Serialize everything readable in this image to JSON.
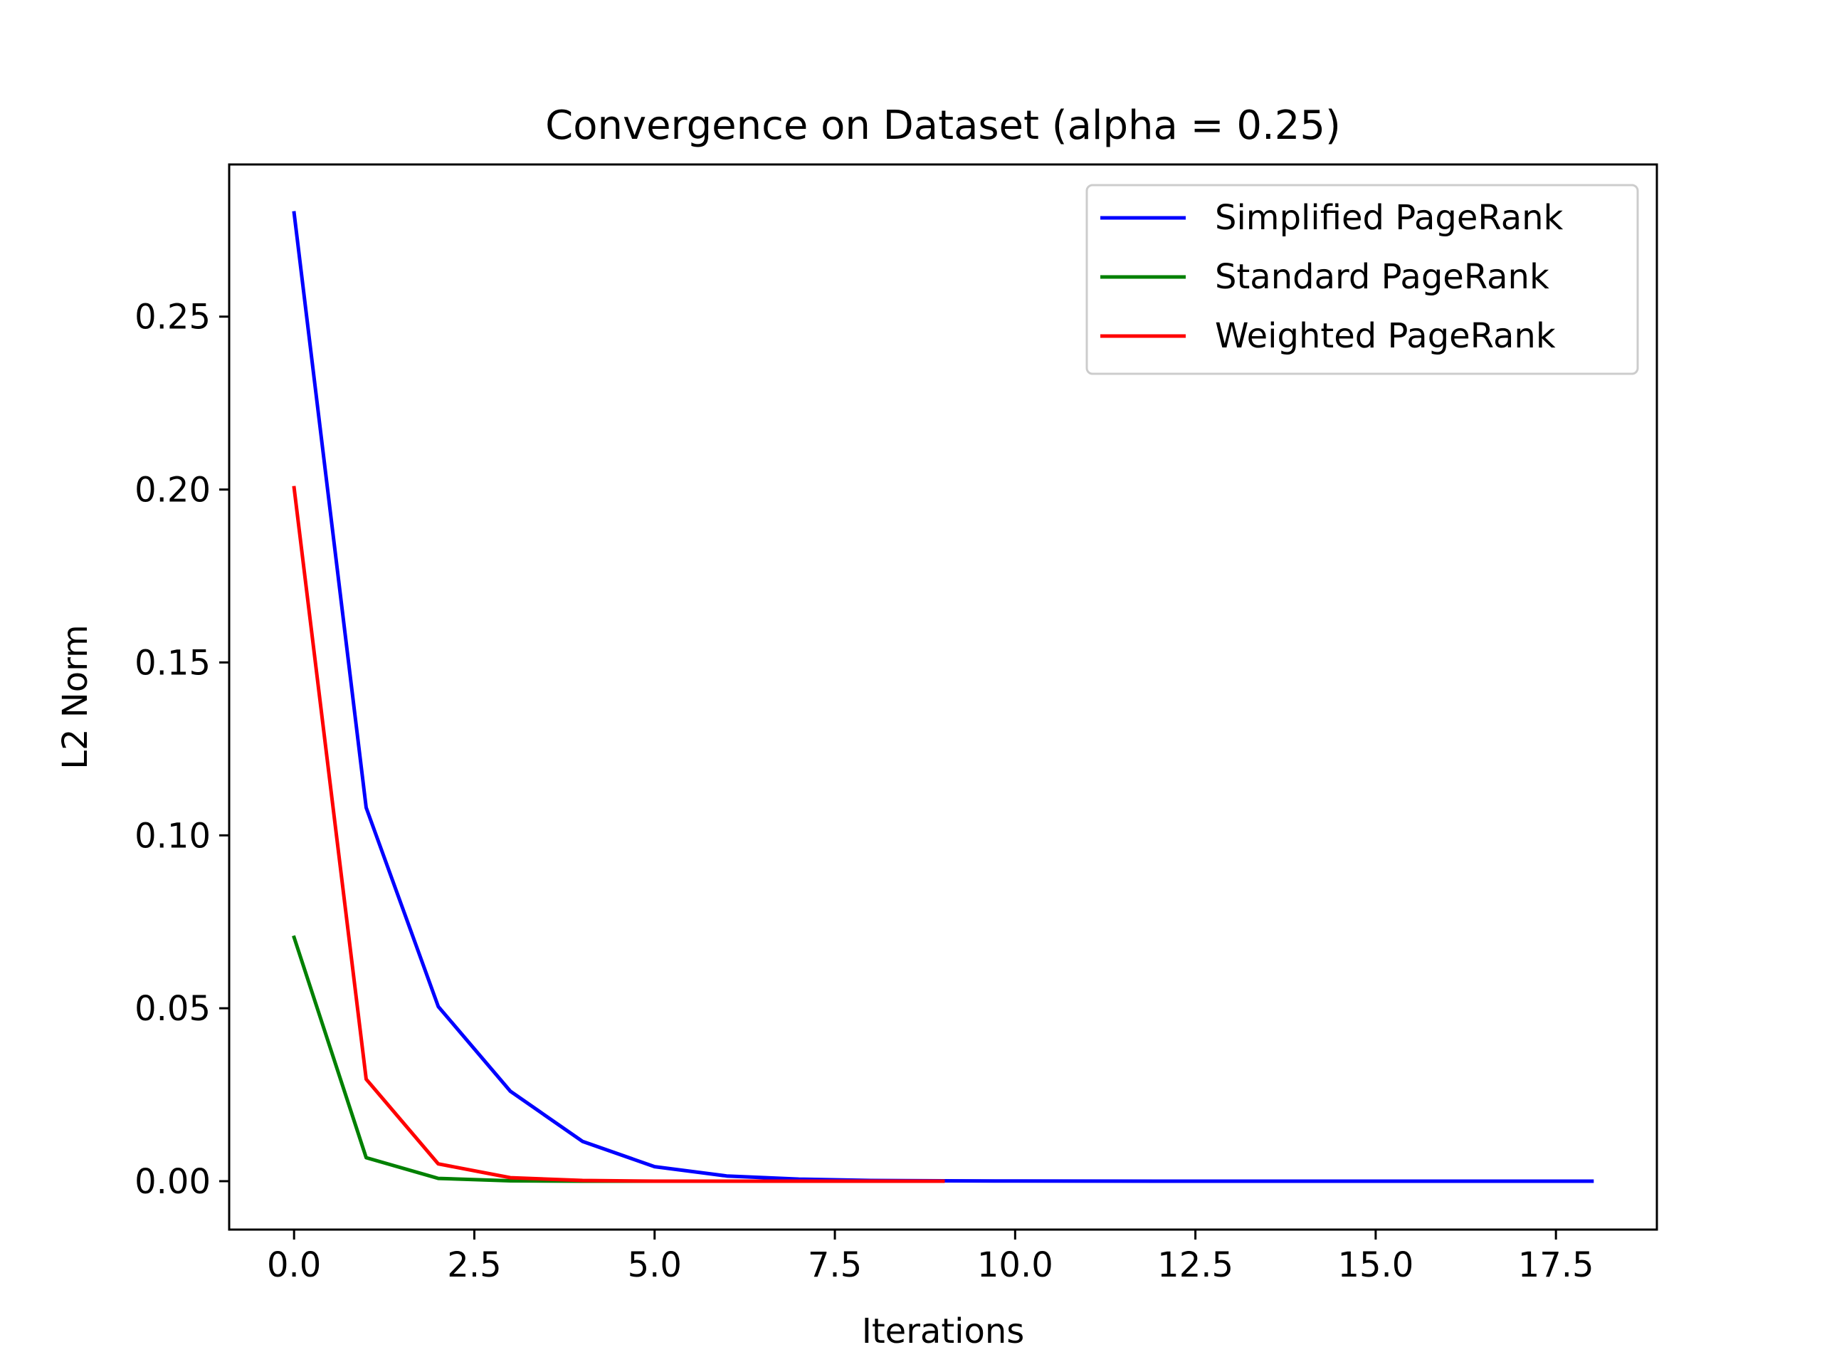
{
  "chart_data": {
    "type": "line",
    "title": "Convergence on Dataset (alpha = 0.25)",
    "xlabel": "Iterations",
    "ylabel": "L2 Norm",
    "xlim": [
      -0.9,
      18.9
    ],
    "ylim": [
      -0.014,
      0.294
    ],
    "xticks": [
      0.0,
      2.5,
      5.0,
      7.5,
      10.0,
      12.5,
      15.0,
      17.5
    ],
    "xtick_labels": [
      "0.0",
      "2.5",
      "5.0",
      "7.5",
      "10.0",
      "12.5",
      "15.0",
      "17.5"
    ],
    "yticks": [
      0.0,
      0.05,
      0.1,
      0.15,
      0.2,
      0.25
    ],
    "ytick_labels": [
      "0.00",
      "0.05",
      "0.10",
      "0.15",
      "0.20",
      "0.25"
    ],
    "grid": false,
    "legend_position": "upper right",
    "series": [
      {
        "name": "Simplified PageRank",
        "color": "#0000ff",
        "x": [
          0,
          1,
          2,
          3,
          4,
          5,
          6,
          7,
          8,
          9,
          10,
          11,
          12,
          13,
          14,
          15,
          16,
          17,
          18
        ],
        "y": [
          0.28,
          0.108,
          0.0505,
          0.026,
          0.0115,
          0.0042,
          0.0015,
          0.0006,
          0.0002,
          0.0001,
          5e-05,
          2e-05,
          1e-05,
          0.0,
          0.0,
          0.0,
          0.0,
          0.0,
          0.0
        ]
      },
      {
        "name": "Standard PageRank",
        "color": "#008000",
        "x": [
          0,
          1,
          2,
          3,
          4,
          5
        ],
        "y": [
          0.0705,
          0.0068,
          0.0008,
          0.0001,
          0.0,
          0.0
        ]
      },
      {
        "name": "Weighted PageRank",
        "color": "#ff0000",
        "x": [
          0,
          1,
          2,
          3,
          4,
          5,
          6,
          7,
          8,
          9
        ],
        "y": [
          0.2005,
          0.0295,
          0.005,
          0.001,
          0.0002,
          0.0,
          0.0,
          0.0,
          0.0,
          0.0
        ]
      }
    ]
  }
}
